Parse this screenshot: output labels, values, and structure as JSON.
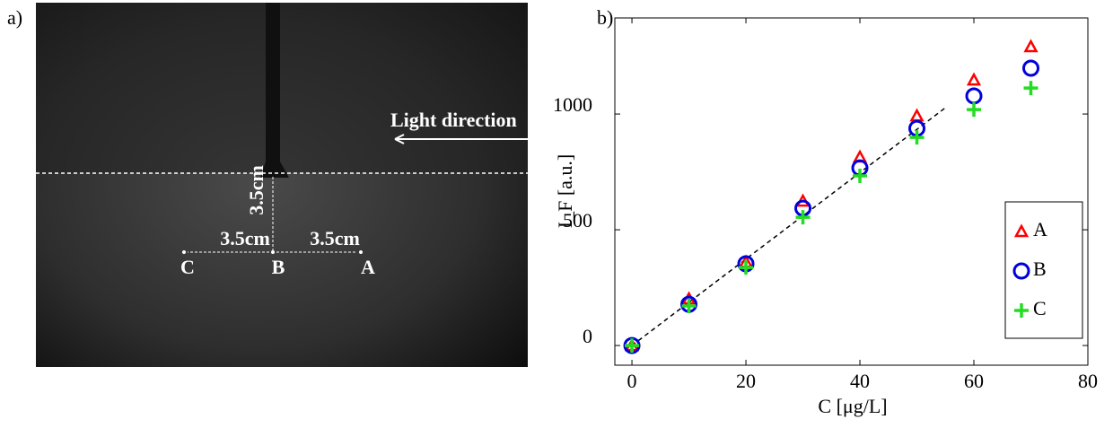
{
  "panel_a": {
    "label": "a)",
    "light_label": "Light direction",
    "distance_labels": [
      "3.5cm",
      "3.5cm",
      "3.5cm"
    ],
    "point_labels": [
      "C",
      "B",
      "A"
    ]
  },
  "chart_data": {
    "type": "scatter",
    "panel_label": "b)",
    "x_label": "C [μg/L]",
    "y_label": "I_F [a.u.]",
    "x": [
      0,
      10,
      20,
      30,
      40,
      50,
      60,
      70
    ],
    "series": [
      {
        "name": "A",
        "color": "#ff0000",
        "marker": "triangle",
        "values": [
          0,
          202,
          360,
          624,
          814,
          992,
          1147,
          1291
        ]
      },
      {
        "name": "B",
        "color": "#0000dd",
        "marker": "circle",
        "values": [
          0,
          178,
          353,
          593,
          767,
          938,
          1078,
          1198
        ]
      },
      {
        "name": "C",
        "color": "#22dd22",
        "marker": "plus",
        "values": [
          0,
          171,
          337,
          554,
          733,
          899,
          1019,
          1112
        ]
      }
    ],
    "fit_line": {
      "x": [
        0,
        55
      ],
      "values": [
        0,
        1027
      ]
    },
    "xlim": [
      -3,
      80
    ],
    "ylim": [
      -85,
      1415
    ],
    "xticks": [
      0,
      20,
      40,
      60,
      80
    ],
    "yticks": [
      0,
      500,
      1000
    ],
    "legend": "lower right"
  }
}
